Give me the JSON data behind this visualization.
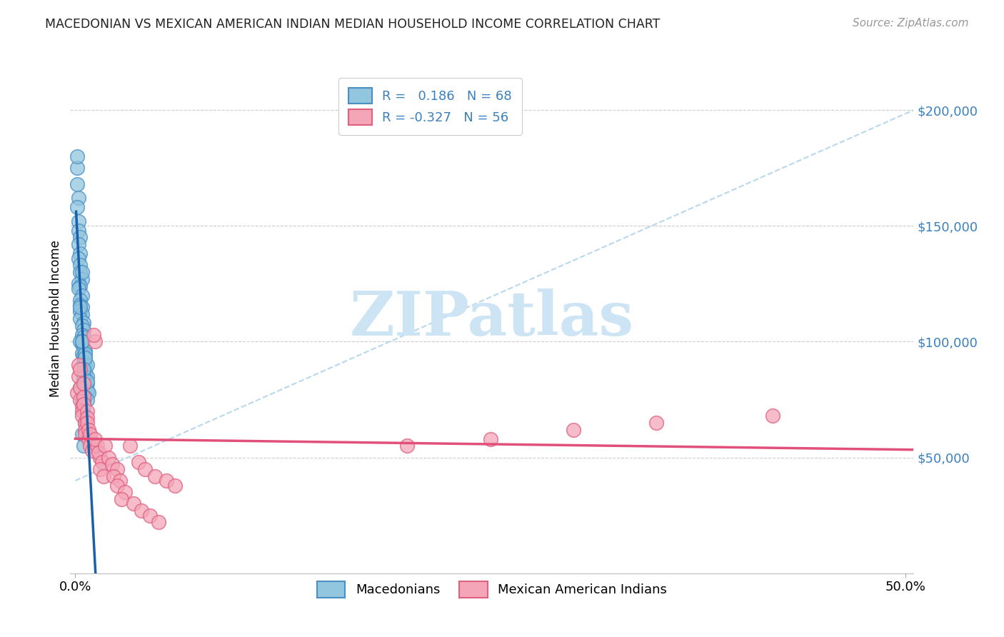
{
  "title": "MACEDONIAN VS MEXICAN AMERICAN INDIAN MEDIAN HOUSEHOLD INCOME CORRELATION CHART",
  "source": "Source: ZipAtlas.com",
  "ylabel": "Median Household Income",
  "yticks_labels": [
    "$50,000",
    "$100,000",
    "$150,000",
    "$200,000"
  ],
  "yticks_values": [
    50000,
    100000,
    150000,
    200000
  ],
  "ylim": [
    0,
    220000
  ],
  "xlim": [
    -0.003,
    0.505
  ],
  "legend_blue_r": "0.186",
  "legend_blue_n": "68",
  "legend_pink_r": "-0.327",
  "legend_pink_n": "56",
  "blue_color": "#92c5de",
  "pink_color": "#f4a6b8",
  "blue_edge_color": "#4a90c4",
  "pink_edge_color": "#e06080",
  "blue_line_color": "#1a5faa",
  "pink_line_color": "#e0507a",
  "dashed_line_color": "#b0d4ea",
  "watermark_color": "#cce4f4",
  "macedonian_x": [
    0.001,
    0.002,
    0.001,
    0.001,
    0.002,
    0.002,
    0.003,
    0.001,
    0.002,
    0.003,
    0.002,
    0.003,
    0.003,
    0.004,
    0.002,
    0.003,
    0.002,
    0.004,
    0.003,
    0.003,
    0.004,
    0.003,
    0.004,
    0.004,
    0.003,
    0.005,
    0.004,
    0.005,
    0.004,
    0.005,
    0.003,
    0.004,
    0.005,
    0.006,
    0.004,
    0.005,
    0.006,
    0.005,
    0.006,
    0.005,
    0.006,
    0.006,
    0.007,
    0.005,
    0.006,
    0.007,
    0.005,
    0.006,
    0.007,
    0.008,
    0.006,
    0.007,
    0.005,
    0.004,
    0.006,
    0.007,
    0.005,
    0.003,
    0.004,
    0.005,
    0.006,
    0.004,
    0.005,
    0.003,
    0.004,
    0.006,
    0.005,
    0.007
  ],
  "macedonian_y": [
    168000,
    162000,
    158000,
    175000,
    152000,
    148000,
    145000,
    180000,
    142000,
    138000,
    136000,
    133000,
    130000,
    127000,
    125000,
    124000,
    123000,
    120000,
    118000,
    116000,
    115000,
    113000,
    112000,
    130000,
    110000,
    108000,
    107000,
    105000,
    103000,
    102000,
    100000,
    99000,
    97000,
    96000,
    95000,
    94000,
    93000,
    91000,
    90000,
    88000,
    87000,
    86000,
    85000,
    84000,
    83000,
    82000,
    81000,
    80000,
    79000,
    78000,
    76000,
    75000,
    74000,
    100000,
    95000,
    90000,
    85000,
    80000,
    75000,
    70000,
    65000,
    60000,
    55000,
    115000,
    100000,
    93000,
    88000,
    83000
  ],
  "mexican_indian_x": [
    0.001,
    0.002,
    0.003,
    0.002,
    0.003,
    0.004,
    0.003,
    0.004,
    0.005,
    0.004,
    0.005,
    0.006,
    0.005,
    0.006,
    0.007,
    0.006,
    0.007,
    0.008,
    0.007,
    0.009,
    0.008,
    0.01,
    0.009,
    0.012,
    0.011,
    0.013,
    0.012,
    0.015,
    0.014,
    0.016,
    0.015,
    0.018,
    0.017,
    0.02,
    0.022,
    0.025,
    0.023,
    0.027,
    0.025,
    0.03,
    0.028,
    0.033,
    0.035,
    0.038,
    0.04,
    0.042,
    0.045,
    0.048,
    0.05,
    0.055,
    0.06,
    0.42,
    0.35,
    0.3,
    0.25,
    0.2
  ],
  "mexican_indian_y": [
    78000,
    85000,
    75000,
    90000,
    80000,
    72000,
    88000,
    70000,
    82000,
    68000,
    76000,
    65000,
    73000,
    62000,
    70000,
    60000,
    67000,
    58000,
    65000,
    55000,
    62000,
    53000,
    60000,
    100000,
    103000,
    55000,
    58000,
    50000,
    52000,
    48000,
    45000,
    55000,
    42000,
    50000,
    47000,
    45000,
    42000,
    40000,
    38000,
    35000,
    32000,
    55000,
    30000,
    48000,
    27000,
    45000,
    25000,
    42000,
    22000,
    40000,
    38000,
    68000,
    65000,
    62000,
    58000,
    55000
  ]
}
